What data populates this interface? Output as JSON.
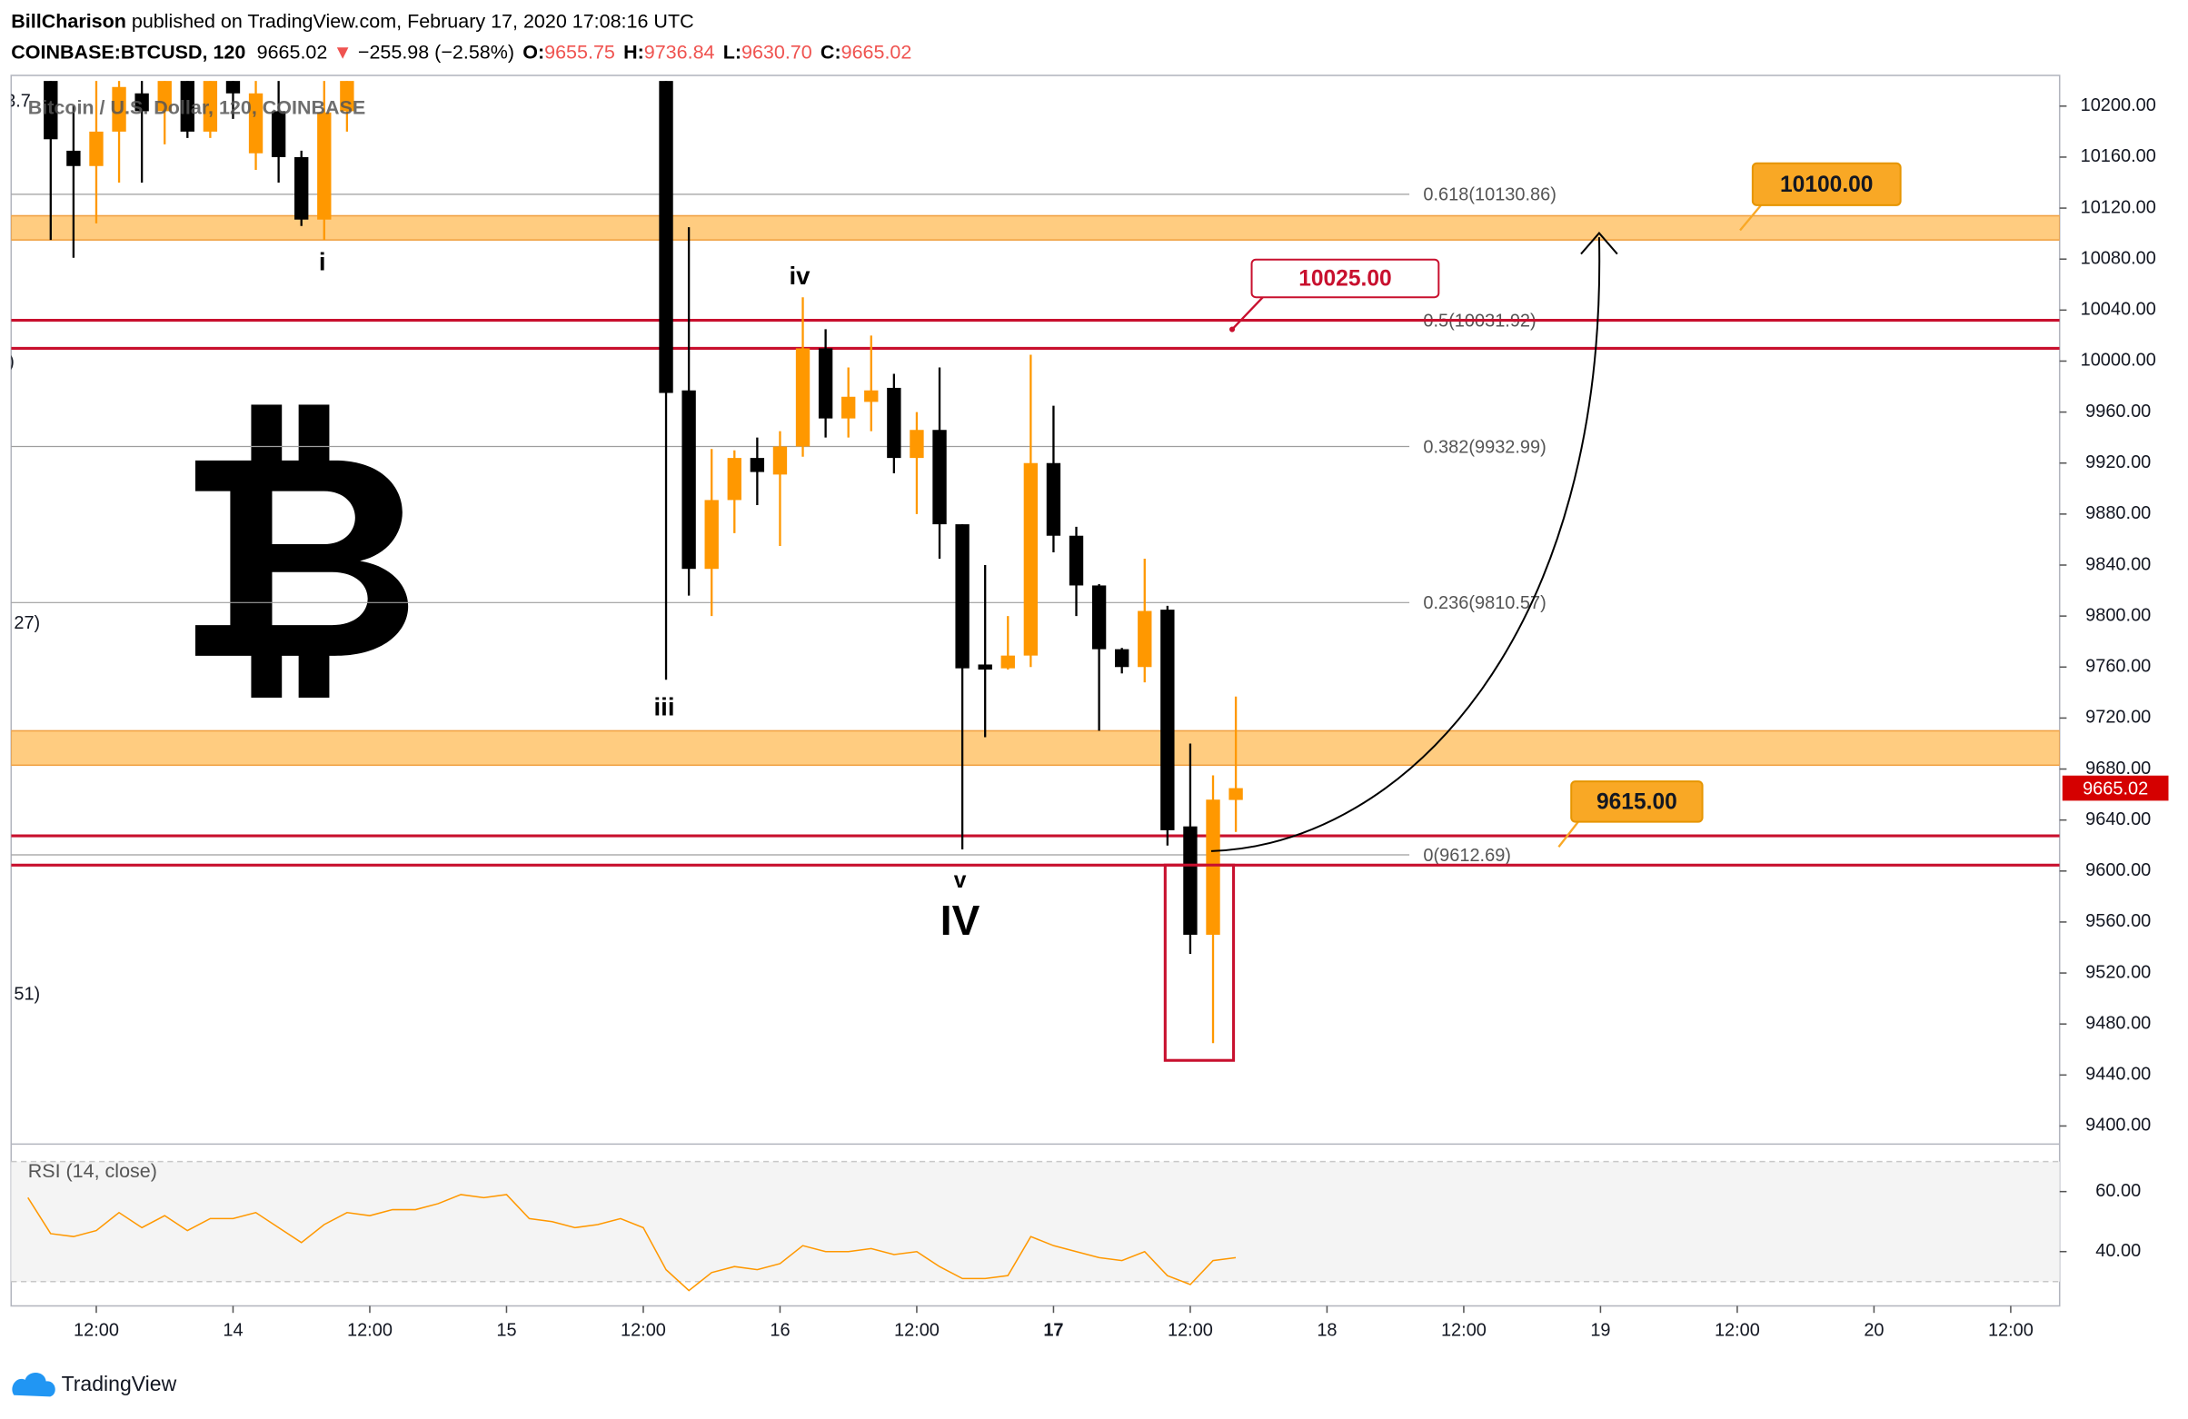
{
  "header": {
    "author": "BillCharison",
    "published": " published on TradingView.com, February 17, 2020 17:08:16 UTC",
    "symbol": "COINBASE:BTCUSD, 120",
    "price": "9665.02",
    "direction": "▼",
    "change": "−255.98 (−2.58%)",
    "ohlc": [
      {
        "key": "O:",
        "value": "9655.75"
      },
      {
        "key": "H:",
        "value": "9736.84"
      },
      {
        "key": "L:",
        "value": "9630.70"
      },
      {
        "key": "C:",
        "value": "9665.02"
      }
    ]
  },
  "chart_data": {
    "type": "candlestick",
    "legend_title": "Bitcoin / U.S. Dollar, 120, COINBASE",
    "up_color": "#ff9800",
    "down_color": "#000000",
    "x": [
      8,
      10,
      12,
      14,
      16,
      18,
      20,
      22,
      24,
      26,
      28,
      30,
      32,
      34,
      62,
      64,
      66,
      68,
      70,
      72,
      74,
      76,
      78,
      80,
      82,
      84,
      86,
      88,
      90,
      92,
      94,
      96,
      98,
      100,
      102,
      104,
      106,
      108,
      110,
      112
    ],
    "open": [
      10230,
      10165,
      10153,
      10180,
      10210,
      10196,
      10228,
      10180,
      10225,
      10163,
      10196,
      10160,
      10111,
      10196,
      10260,
      9977,
      9837,
      9891,
      9924,
      9911,
      9933,
      10010,
      9955,
      9968,
      9979,
      9924,
      9946,
      9872,
      9762,
      9759,
      9769,
      9920,
      9863,
      9824,
      9774,
      9760,
      9805,
      9635,
      9550,
      9655.75
    ],
    "high": [
      10260,
      10200,
      10220,
      10240,
      10240,
      10250,
      10240,
      10240,
      10240,
      10240,
      10230,
      10165,
      10230,
      10240,
      10280,
      10105,
      9931,
      9930,
      9940,
      9945,
      10050,
      10025,
      9995,
      10020,
      9990,
      9960,
      9995,
      9872,
      9840,
      9800,
      10005,
      9965,
      9870,
      9825,
      9775,
      9845,
      9808,
      9700,
      9675,
      9736.84
    ],
    "low": [
      10095,
      10081,
      10108,
      10140,
      10140,
      10170,
      10175,
      10175,
      10190,
      10150,
      10140,
      10106,
      10095,
      10180,
      9750,
      9816,
      9800,
      9865,
      9887,
      9855,
      9925,
      9940,
      9940,
      9945,
      9912,
      9880,
      9845,
      9617,
      9705,
      9758,
      9760,
      9850,
      9800,
      9710,
      9755,
      9748,
      9620,
      9535,
      9465,
      9630.7
    ],
    "close": [
      10174,
      10153,
      10180,
      10215,
      10196,
      10230,
      10180,
      10220,
      10210,
      10210,
      10160,
      10111,
      10195,
      10220,
      9975,
      9837,
      9891,
      9924,
      9913,
      9933,
      10010,
      9955,
      9972,
      9977,
      9924,
      9946,
      9872,
      9759,
      9758,
      9769,
      9920,
      9863,
      9824,
      9774,
      9760,
      9804,
      9632,
      9550,
      9656,
      9665.02
    ],
    "xlim": [
      4.53,
      184.29
    ],
    "xticks": [
      {
        "value": 12,
        "label": "12:00"
      },
      {
        "value": 24,
        "label": "14"
      },
      {
        "value": 36,
        "label": "12:00"
      },
      {
        "value": 48,
        "label": "15"
      },
      {
        "value": 60,
        "label": "12:00"
      },
      {
        "value": 72,
        "label": "16"
      },
      {
        "value": 84,
        "label": "12:00"
      },
      {
        "value": 96,
        "label": "17"
      },
      {
        "value": 108,
        "label": "12:00"
      },
      {
        "value": 120,
        "label": "18"
      },
      {
        "value": 132,
        "label": "12:00"
      },
      {
        "value": 144,
        "label": "19"
      },
      {
        "value": 156,
        "label": "12:00"
      },
      {
        "value": 168,
        "label": "20"
      },
      {
        "value": 180,
        "label": "12:00"
      }
    ],
    "ylim": [
      9388,
      10219.7
    ],
    "yticks": [
      {
        "value": 9400,
        "label": "9400.00"
      },
      {
        "value": 9440,
        "label": "9440.00"
      },
      {
        "value": 9480,
        "label": "9480.00"
      },
      {
        "value": 9520,
        "label": "9520.00"
      },
      {
        "value": 9560,
        "label": "9560.00"
      },
      {
        "value": 9600,
        "label": "9600.00"
      },
      {
        "value": 9640,
        "label": "9640.00"
      },
      {
        "value": 9680,
        "label": "9680.00"
      },
      {
        "value": 9720,
        "label": "9720.00"
      },
      {
        "value": 9760,
        "label": "9760.00"
      },
      {
        "value": 9800,
        "label": "9800.00"
      },
      {
        "value": 9840,
        "label": "9840.00"
      },
      {
        "value": 9880,
        "label": "9880.00"
      },
      {
        "value": 9920,
        "label": "9920.00"
      },
      {
        "value": 9960,
        "label": "9960.00"
      },
      {
        "value": 10000,
        "label": "10000.00"
      },
      {
        "value": 10040,
        "label": "10040.00"
      },
      {
        "value": 10080,
        "label": "10080.00"
      },
      {
        "value": 10120,
        "label": "10120.00"
      },
      {
        "value": 10160,
        "label": "10160.00"
      },
      {
        "value": 10200,
        "label": "10200.00"
      }
    ],
    "fib_levels": [
      {
        "label": "0.618(10130.86)",
        "value": 10130.86
      },
      {
        "label": "0.5(10031.92)",
        "value": 10031.92
      },
      {
        "label": "0.382(9932.99)",
        "value": 9932.99
      },
      {
        "label": "0.236(9810.57)",
        "value": 9810.57
      },
      {
        "label": "0(9612.69)",
        "value": 9612.69
      }
    ],
    "zones": [
      {
        "from": 10095,
        "to": 10114,
        "color": "#ffcc80"
      },
      {
        "from": 9683,
        "to": 9710,
        "color": "#ffcc80"
      }
    ],
    "red_lines": [
      10032,
      10010,
      9627.6,
      9604.6
    ],
    "red_color": "#c8102e",
    "price_notes": [
      {
        "text": "10025.00",
        "color": "#c8102e"
      },
      {
        "text": "10100.00",
        "color": "#f9a825"
      },
      {
        "text": "9615.00",
        "color": "#f9a825"
      }
    ],
    "wave_labels": [
      "i",
      "iii",
      "iv",
      "v",
      "IV"
    ],
    "clipped_labels": [
      "3.7",
      ")",
      "27)",
      "51)"
    ],
    "indicator": {
      "title": "RSI (14, close)",
      "color": "#ff9800",
      "x": [
        6,
        8,
        10,
        12,
        14,
        16,
        18,
        20,
        22,
        24,
        26,
        28,
        30,
        32,
        34,
        36,
        38,
        40,
        42,
        44,
        46,
        48,
        50,
        52,
        54,
        56,
        58,
        60,
        62,
        64,
        66,
        68,
        70,
        72,
        74,
        76,
        78,
        80,
        82,
        84,
        86,
        88,
        90,
        92,
        94,
        96,
        98,
        100,
        102,
        104,
        106,
        108,
        110,
        112
      ],
      "values": [
        58,
        46,
        45,
        47,
        53,
        48,
        52,
        47,
        51,
        51,
        53,
        48,
        43,
        49,
        53,
        52,
        54,
        54,
        56,
        59,
        58,
        59,
        51,
        50,
        48,
        49,
        51,
        48,
        34,
        27,
        33,
        35,
        34,
        36,
        42,
        40,
        40,
        41,
        39,
        40,
        35,
        31,
        31,
        32,
        45,
        42,
        40,
        38,
        37,
        40,
        32,
        29,
        37,
        38
      ],
      "ylim": [
        21.9,
        74.9
      ],
      "yticks": [
        {
          "value": 40,
          "label": "40.00"
        },
        {
          "value": 60,
          "label": "60.00"
        }
      ],
      "bands": [
        70,
        30
      ]
    },
    "footer": "TradingView"
  }
}
